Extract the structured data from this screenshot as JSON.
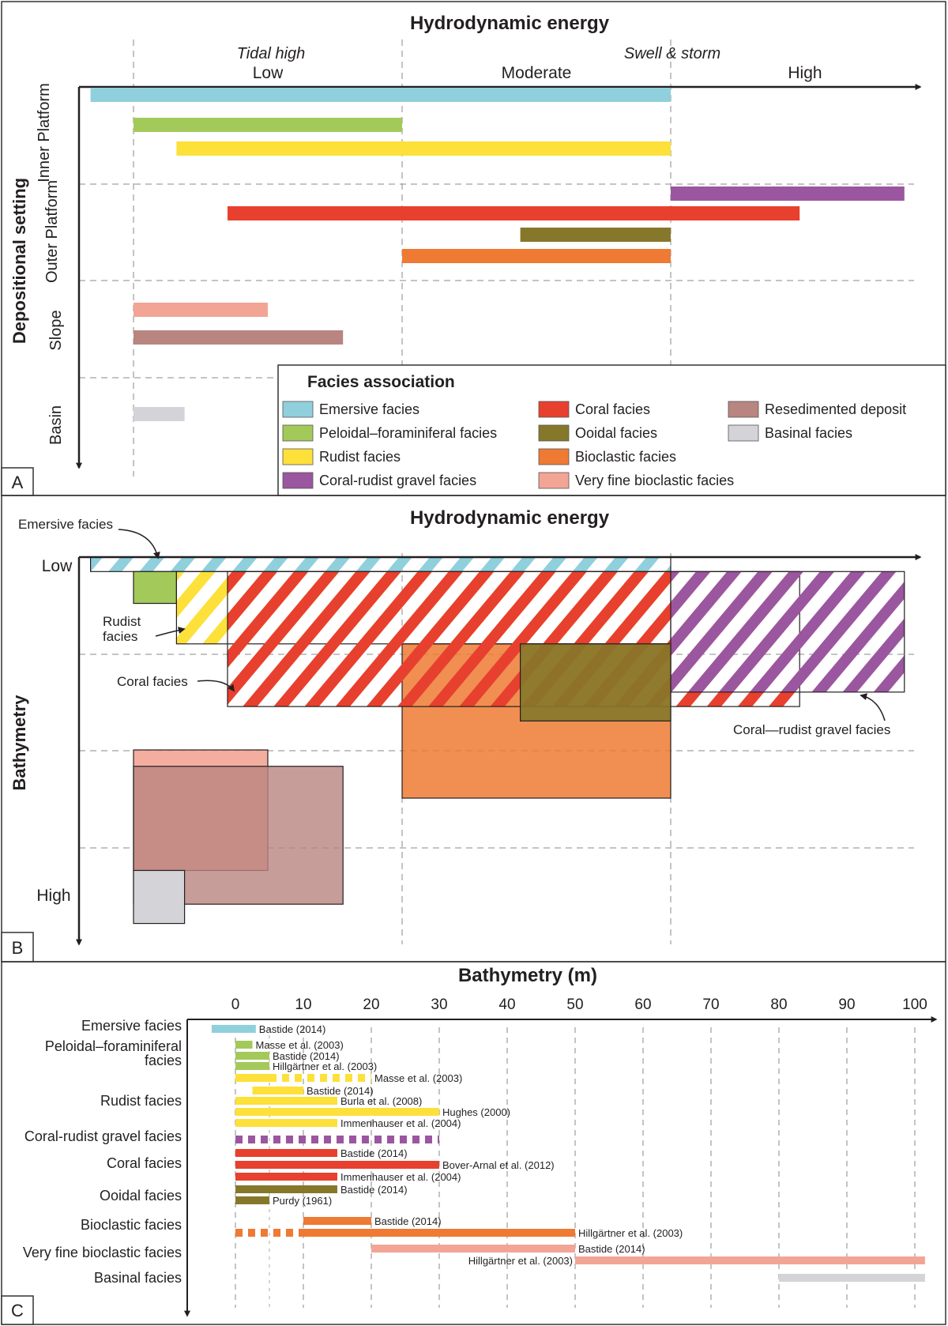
{
  "colors": {
    "emersive": "#8fd0dc",
    "peloidal": "#a3c95a",
    "rudist": "#fde03a",
    "coral": "#e8402e",
    "ooidal": "#85782a",
    "bioclastic": "#ee7a34",
    "gravel": "#9b56a0",
    "veryfine": "#f2a595",
    "resedimented": "#b98580",
    "basinal": "#d3d3d8"
  },
  "panelA": {
    "label": "A",
    "title": "Hydrodynamic energy",
    "energy_levels": [
      "Low",
      "Moderate",
      "High"
    ],
    "energy_notes": [
      "Tidal high",
      "Swell & storm"
    ],
    "y_axis_label": "Depositional setting",
    "settings": [
      "Inner Platform",
      "Outer Platform",
      "Slope",
      "Basin"
    ],
    "legend_title": "Facies association",
    "legend_items": [
      {
        "label": "Emersive facies",
        "color": "#8fd0dc"
      },
      {
        "label": "Peloidal–foraminiferal facies",
        "color": "#a3c95a"
      },
      {
        "label": "Rudist facies",
        "color": "#fde03a"
      },
      {
        "label": "Coral-rudist gravel facies",
        "color": "#9b56a0"
      },
      {
        "label": "Coral facies",
        "color": "#e8402e"
      },
      {
        "label": "Ooidal facies",
        "color": "#85782a"
      },
      {
        "label": "Bioclastic facies",
        "color": "#ee7a34"
      },
      {
        "label": "Very fine bioclastic facies",
        "color": "#f2a595"
      },
      {
        "label": "Resedimented deposit",
        "color": "#b98580"
      },
      {
        "label": "Basinal facies",
        "color": "#d3d3d8"
      }
    ]
  },
  "panelB": {
    "label": "B",
    "title": "Hydrodynamic energy",
    "y_axis_label": "Bathymetry",
    "y_top_label": "Low",
    "y_bottom_label": "High",
    "annotations": {
      "emersive": "Emersive facies",
      "rudist_line1": "Rudist",
      "rudist_line2": "facies",
      "coral": "Coral facies",
      "gravel": "Coral—rudist gravel facies"
    }
  },
  "panelC": {
    "label": "C",
    "title": "Bathymetry (m)"
  },
  "chart_data": [
    {
      "type": "gantt",
      "panel": "A",
      "title": "Hydrodynamic energy",
      "x_axis": {
        "categories": [
          "Low",
          "Moderate",
          "High"
        ],
        "notes": [
          "Tidal high",
          "Swell & storm"
        ],
        "scale": "relative energy, 0 (low) to 3 (high)"
      },
      "y_axis": {
        "label": "Depositional setting",
        "categories": [
          "Inner Platform",
          "Outer Platform",
          "Slope",
          "Basin"
        ]
      },
      "bars": [
        {
          "facies": "Emersive facies",
          "setting": "Inner Platform",
          "start": -0.16,
          "end": 2.0
        },
        {
          "facies": "Peloidal–foraminiferal facies",
          "setting": "Inner Platform",
          "start": 0.0,
          "end": 1.0
        },
        {
          "facies": "Rudist facies",
          "setting": "Inner Platform",
          "start": 0.16,
          "end": 2.0
        },
        {
          "facies": "Coral-rudist gravel facies",
          "setting": "Outer Platform",
          "start": 2.0,
          "end": 2.87
        },
        {
          "facies": "Coral facies",
          "setting": "Outer Platform",
          "start": 0.35,
          "end": 2.48
        },
        {
          "facies": "Ooidal facies",
          "setting": "Outer Platform",
          "start": 1.44,
          "end": 2.0
        },
        {
          "facies": "Bioclastic facies",
          "setting": "Outer Platform",
          "start": 1.0,
          "end": 2.0
        },
        {
          "facies": "Very fine bioclastic facies",
          "setting": "Slope",
          "start": 0.0,
          "end": 0.5
        },
        {
          "facies": "Resedimented deposit",
          "setting": "Slope",
          "start": 0.0,
          "end": 0.78
        },
        {
          "facies": "Basinal facies",
          "setting": "Basin",
          "start": 0.0,
          "end": 0.19
        }
      ]
    },
    {
      "type": "area",
      "panel": "B",
      "title": "Hydrodynamic energy",
      "x_axis": {
        "scale": "relative energy, 0 (low) to 3 (high)"
      },
      "y_axis": {
        "label": "Bathymetry",
        "top": "Low",
        "bottom": "High",
        "scale": "relative depth, 0 (low) to 4 (high)"
      },
      "zones": [
        {
          "facies": "Emersive facies",
          "x": [
            -0.16,
            2.0
          ],
          "y": [
            0.0,
            0.15
          ],
          "fill": "hatched"
        },
        {
          "facies": "Peloidal–foraminiferal facies",
          "x": [
            0.0,
            0.16
          ],
          "y": [
            0.15,
            0.48
          ],
          "fill": "solid"
        },
        {
          "facies": "Rudist facies",
          "x": [
            0.16,
            2.0
          ],
          "y": [
            0.15,
            0.9
          ],
          "fill": "hatched"
        },
        {
          "facies": "Coral facies",
          "x": [
            0.35,
            2.48
          ],
          "y": [
            0.15,
            1.55
          ],
          "fill": "hatched"
        },
        {
          "facies": "Coral-rudist gravel facies",
          "x": [
            2.0,
            2.87
          ],
          "y": [
            0.15,
            1.4
          ],
          "fill": "hatched"
        },
        {
          "facies": "Ooidal facies",
          "x": [
            1.44,
            2.0
          ],
          "y": [
            0.9,
            1.7
          ],
          "fill": "solid"
        },
        {
          "facies": "Bioclastic facies",
          "x": [
            1.0,
            2.0
          ],
          "y": [
            0.9,
            2.5
          ],
          "fill": "solid"
        },
        {
          "facies": "Very fine bioclastic facies",
          "x": [
            0.0,
            0.5
          ],
          "y": [
            2.0,
            3.25
          ],
          "fill": "solid"
        },
        {
          "facies": "Resedimented deposit",
          "x": [
            0.0,
            0.78
          ],
          "y": [
            2.17,
            3.6
          ],
          "fill": "solid"
        },
        {
          "facies": "Basinal facies",
          "x": [
            0.0,
            0.19
          ],
          "y": [
            3.25,
            3.8
          ],
          "fill": "solid"
        }
      ]
    },
    {
      "type": "range",
      "panel": "C",
      "title": "Bathymetry (m)",
      "x_axis": {
        "label": "Bathymetry (m)",
        "ticks": [
          0,
          10,
          20,
          30,
          40,
          50,
          60,
          70,
          80,
          90,
          100
        ],
        "range": [
          -5,
          103
        ]
      },
      "rows": [
        {
          "facies": "Emersive facies",
          "label_lines": [
            "Emersive facies"
          ],
          "color": "#8fd0dc",
          "ranges": [
            {
              "source": "Bastide (2014)",
              "segments": [
                {
                  "start": -3.5,
                  "end": 3.0,
                  "style": "solid"
                }
              ]
            }
          ]
        },
        {
          "facies": "Peloidal–foraminiferal facies",
          "label_lines": [
            "Peloidal–foraminiferal",
            "facies"
          ],
          "color": "#a3c95a",
          "ranges": [
            {
              "source": "Masse et al. (2003)",
              "segments": [
                {
                  "start": 0.0,
                  "end": 2.5,
                  "style": "solid"
                }
              ]
            },
            {
              "source": "Bastide (2014)",
              "segments": [
                {
                  "start": 0.0,
                  "end": 5.0,
                  "style": "solid"
                }
              ]
            },
            {
              "source": "Hillgärtner et al. (2003)",
              "segments": [
                {
                  "start": 0.0,
                  "end": 5.0,
                  "style": "solid"
                }
              ]
            }
          ]
        },
        {
          "facies": "Rudist facies",
          "label_lines": [
            "Rudist facies"
          ],
          "color": "#fde03a",
          "ranges": [
            {
              "source": "Masse et al. (2003)",
              "segments": [
                {
                  "start": 0.0,
                  "end": 5.0,
                  "style": "solid"
                },
                {
                  "start": 5.0,
                  "end": 20.0,
                  "style": "dashed"
                }
              ]
            },
            {
              "source": "Bastide (2014)",
              "segments": [
                {
                  "start": 2.5,
                  "end": 10.0,
                  "style": "solid"
                }
              ]
            },
            {
              "source": "Burla et al. (2008)",
              "segments": [
                {
                  "start": 0.0,
                  "end": 15.0,
                  "style": "solid"
                }
              ]
            },
            {
              "source": "Hughes (2000)",
              "segments": [
                {
                  "start": 0.0,
                  "end": 30.0,
                  "style": "solid"
                }
              ]
            },
            {
              "source": "Immenhauser et al. (2004)",
              "segments": [
                {
                  "start": 0.0,
                  "end": 15.0,
                  "style": "solid"
                }
              ]
            }
          ]
        },
        {
          "facies": "Coral-rudist gravel facies",
          "label_lines": [
            "Coral-rudist gravel facies"
          ],
          "color": "#9b56a0",
          "ranges": [
            {
              "source": "",
              "segments": [
                {
                  "start": 0.0,
                  "end": 30.0,
                  "style": "dashed"
                }
              ]
            }
          ]
        },
        {
          "facies": "Coral facies",
          "label_lines": [
            "Coral facies"
          ],
          "color": "#e8402e",
          "ranges": [
            {
              "source": "Bastide (2014)",
              "segments": [
                {
                  "start": 0.0,
                  "end": 15.0,
                  "style": "solid"
                }
              ]
            },
            {
              "source": "Bover-Arnal et al. (2012)",
              "segments": [
                {
                  "start": 0.0,
                  "end": 30.0,
                  "style": "solid"
                }
              ]
            },
            {
              "source": "Immenhauser et al. (2004)",
              "segments": [
                {
                  "start": 0.0,
                  "end": 15.0,
                  "style": "solid"
                }
              ]
            }
          ]
        },
        {
          "facies": "Ooidal facies",
          "label_lines": [
            "Ooidal facies"
          ],
          "color": "#85782a",
          "ranges": [
            {
              "source": "Bastide (2014)",
              "segments": [
                {
                  "start": 0.0,
                  "end": 15.0,
                  "style": "solid"
                }
              ]
            },
            {
              "source": "Purdy (1961)",
              "segments": [
                {
                  "start": 0.0,
                  "end": 5.0,
                  "style": "solid"
                }
              ]
            }
          ]
        },
        {
          "facies": "Bioclastic facies",
          "label_lines": [
            "Bioclastic facies"
          ],
          "color": "#ee7a34",
          "ranges": [
            {
              "source": "Bastide (2014)",
              "segments": [
                {
                  "start": 10.0,
                  "end": 20.0,
                  "style": "solid"
                }
              ]
            },
            {
              "source": "Hillgärtner et al. (2003)",
              "segments": [
                {
                  "start": 0.0,
                  "end": 10.0,
                  "style": "dashed"
                },
                {
                  "start": 10.0,
                  "end": 50.0,
                  "style": "solid"
                }
              ]
            }
          ]
        },
        {
          "facies": "Very fine bioclastic facies",
          "label_lines": [
            "Very fine bioclastic facies"
          ],
          "color": "#f2a595",
          "ranges": [
            {
              "source": "Bastide (2014)",
              "segments": [
                {
                  "start": 20.0,
                  "end": 50.0,
                  "style": "solid"
                }
              ]
            },
            {
              "source": "Hillgärtner et al. (2003)",
              "segments": [
                {
                  "start": 50.0,
                  "end": 101.5,
                  "style": "solid"
                }
              ]
            }
          ]
        },
        {
          "facies": "Basinal facies",
          "label_lines": [
            "Basinal facies"
          ],
          "color": "#d3d3d8",
          "ranges": [
            {
              "source": "",
              "segments": [
                {
                  "start": 80.0,
                  "end": 101.5,
                  "style": "solid"
                }
              ]
            }
          ]
        }
      ]
    }
  ]
}
